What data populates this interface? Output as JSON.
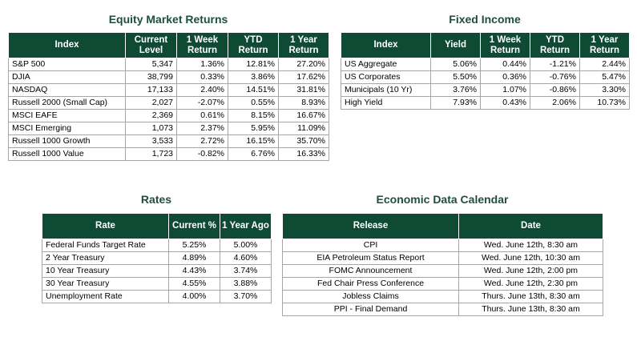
{
  "equity": {
    "title": "Equity Market Returns",
    "headers": [
      "Index",
      "Current Level",
      "1 Week Return",
      "YTD Return",
      "1 Year Return"
    ],
    "rows": [
      [
        "S&P 500",
        "5,347",
        "1.36%",
        "12.81%",
        "27.20%"
      ],
      [
        "DJIA",
        "38,799",
        "0.33%",
        "3.86%",
        "17.62%"
      ],
      [
        "NASDAQ",
        "17,133",
        "2.40%",
        "14.51%",
        "31.81%"
      ],
      [
        "Russell 2000 (Small Cap)",
        "2,027",
        "-2.07%",
        "0.55%",
        "8.93%"
      ],
      [
        "MSCI EAFE",
        "2,369",
        "0.61%",
        "8.15%",
        "16.67%"
      ],
      [
        "MSCI Emerging",
        "1,073",
        "2.37%",
        "5.95%",
        "11.09%"
      ],
      [
        "Russell 1000 Growth",
        "3,533",
        "2.72%",
        "16.15%",
        "35.70%"
      ],
      [
        "Russell 1000 Value",
        "1,723",
        "-0.82%",
        "6.76%",
        "16.33%"
      ]
    ]
  },
  "fixed_income": {
    "title": "Fixed Income",
    "headers": [
      "Index",
      "Yield",
      "1 Week Return",
      "YTD Return",
      "1 Year Return"
    ],
    "rows": [
      [
        "US Aggregate",
        "5.06%",
        "0.44%",
        "-1.21%",
        "2.44%"
      ],
      [
        "US Corporates",
        "5.50%",
        "0.36%",
        "-0.76%",
        "5.47%"
      ],
      [
        "Municipals (10 Yr)",
        "3.76%",
        "1.07%",
        "-0.86%",
        "3.30%"
      ],
      [
        "High Yield",
        "7.93%",
        "0.43%",
        "2.06%",
        "10.73%"
      ]
    ]
  },
  "rates": {
    "title": "Rates",
    "headers": [
      "Rate",
      "Current %",
      "1 Year Ago"
    ],
    "rows": [
      [
        "Federal Funds Target Rate",
        "5.25%",
        "5.00%"
      ],
      [
        "2 Year Treasury",
        "4.89%",
        "4.60%"
      ],
      [
        "10 Year Treasury",
        "4.43%",
        "3.74%"
      ],
      [
        "30 Year Treasury",
        "4.55%",
        "3.88%"
      ],
      [
        "Unemployment Rate",
        "4.00%",
        "3.70%"
      ]
    ]
  },
  "calendar": {
    "title": "Economic Data Calendar",
    "headers": [
      "Release",
      "Date"
    ],
    "rows": [
      [
        "CPI",
        "Wed. June 12th, 8:30 am"
      ],
      [
        "EIA Petroleum Status Report",
        "Wed. June 12th, 10:30 am"
      ],
      [
        "FOMC Announcement",
        "Wed. June 12th, 2:00 pm"
      ],
      [
        "Fed Chair Press Conference",
        "Wed. June 12th, 2:30 pm"
      ],
      [
        "Jobless Claims",
        "Thurs. June 13th, 8:30 am"
      ],
      [
        "PPI - Final Demand",
        "Thurs. June 13th, 8:30 am"
      ]
    ]
  }
}
